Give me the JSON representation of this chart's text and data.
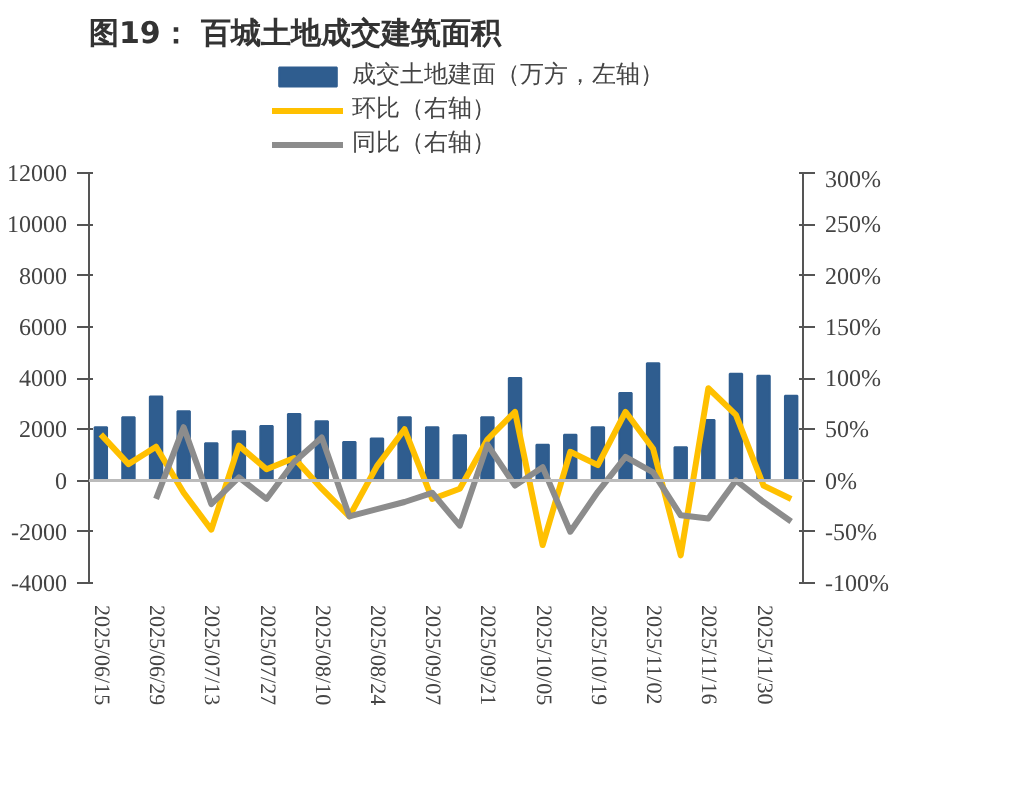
{
  "chart_data": {
    "type": "bar",
    "title": "图19：  百城土地成交建筑面积",
    "x": [
      "2025-06-15",
      "2025-06-22",
      "2025-06-29",
      "2025-07-06",
      "2025-07-13",
      "2025-07-20",
      "2025-07-27",
      "2025-08-03",
      "2025-08-10",
      "2025-08-17",
      "2025-08-24",
      "2025-08-31",
      "2025-09-07",
      "2025-09-14",
      "2025-09-21",
      "2025-09-28",
      "2025-10-05",
      "2025-10-12",
      "2025-10-19",
      "2025-10-26",
      "2025-11-02",
      "2025-11-09",
      "2025-11-16",
      "2025-11-23",
      "2025-11-30",
      "2025-12-07"
    ],
    "series": [
      {
        "name": "成交土地建面（万方，左轴）",
        "color": "#2f5d8f",
        "values": [
          2080,
          2470,
          3280,
          2700,
          1450,
          1920,
          2130,
          2600,
          2310,
          1500,
          1640,
          2470,
          2080,
          1770,
          2470,
          4000,
          1400,
          1790,
          2080,
          3410,
          4580,
          1300,
          2360,
          4170,
          4090,
          3310
        ]
      },
      {
        "name": "环比（右轴）",
        "type": "line",
        "axis": "y2",
        "color": "#ffc000",
        "values": [
          45,
          16,
          33,
          -12,
          -48,
          34,
          11,
          22,
          -8,
          -35,
          14,
          50,
          -18,
          -8,
          40,
          67,
          -63,
          28,
          15,
          67,
          31,
          -73,
          90,
          64,
          -5,
          -18
        ]
      },
      {
        "name": "同比（右轴）",
        "type": "line",
        "axis": "y2",
        "color": "#8c8c8c",
        "values": [
          null,
          null,
          -18,
          52,
          -23,
          3,
          -18,
          18,
          42,
          -35,
          -28,
          -21,
          -12,
          -44,
          35,
          -5,
          13,
          -50,
          -11,
          23,
          8,
          -34,
          -37,
          0,
          -21,
          -40
        ]
      }
    ],
    "xlim": [
      "2025-06-12",
      "2025-12-10"
    ],
    "xticks": [
      {
        "value": "2025-06-15",
        "label": "2025/06/15"
      },
      {
        "value": "2025-06-29",
        "label": "2025/06/29"
      },
      {
        "value": "2025-07-13",
        "label": "2025/07/13"
      },
      {
        "value": "2025-07-27",
        "label": "2025/07/27"
      },
      {
        "value": "2025-08-10",
        "label": "2025/08/10"
      },
      {
        "value": "2025-08-24",
        "label": "2025/08/24"
      },
      {
        "value": "2025-09-07",
        "label": "2025/09/07"
      },
      {
        "value": "2025-09-21",
        "label": "2025/09/21"
      },
      {
        "value": "2025-10-05",
        "label": "2025/10/05"
      },
      {
        "value": "2025-10-19",
        "label": "2025/10/19"
      },
      {
        "value": "2025-11-02",
        "label": "2025/11/02"
      },
      {
        "value": "2025-11-16",
        "label": "2025/11/16"
      },
      {
        "value": "2025-11-30",
        "label": "2025/11/30"
      }
    ],
    "ylim": [
      -4000,
      12000
    ],
    "yticks": [
      -4000,
      -2000,
      0,
      2000,
      4000,
      6000,
      8000,
      10000,
      12000
    ],
    "y2lim": [
      -100,
      300
    ],
    "y2ticks": [
      {
        "value": -100,
        "label": "-100%"
      },
      {
        "value": -50,
        "label": "-50%"
      },
      {
        "value": 0,
        "label": "0%"
      },
      {
        "value": 50,
        "label": "50%"
      },
      {
        "value": 100,
        "label": "100%"
      },
      {
        "value": 150,
        "label": "150%"
      },
      {
        "value": 200,
        "label": "200%"
      },
      {
        "value": 250,
        "label": "250%"
      },
      {
        "value": 300,
        "label": "300%"
      }
    ],
    "legend": "top",
    "line_style": "solid"
  }
}
